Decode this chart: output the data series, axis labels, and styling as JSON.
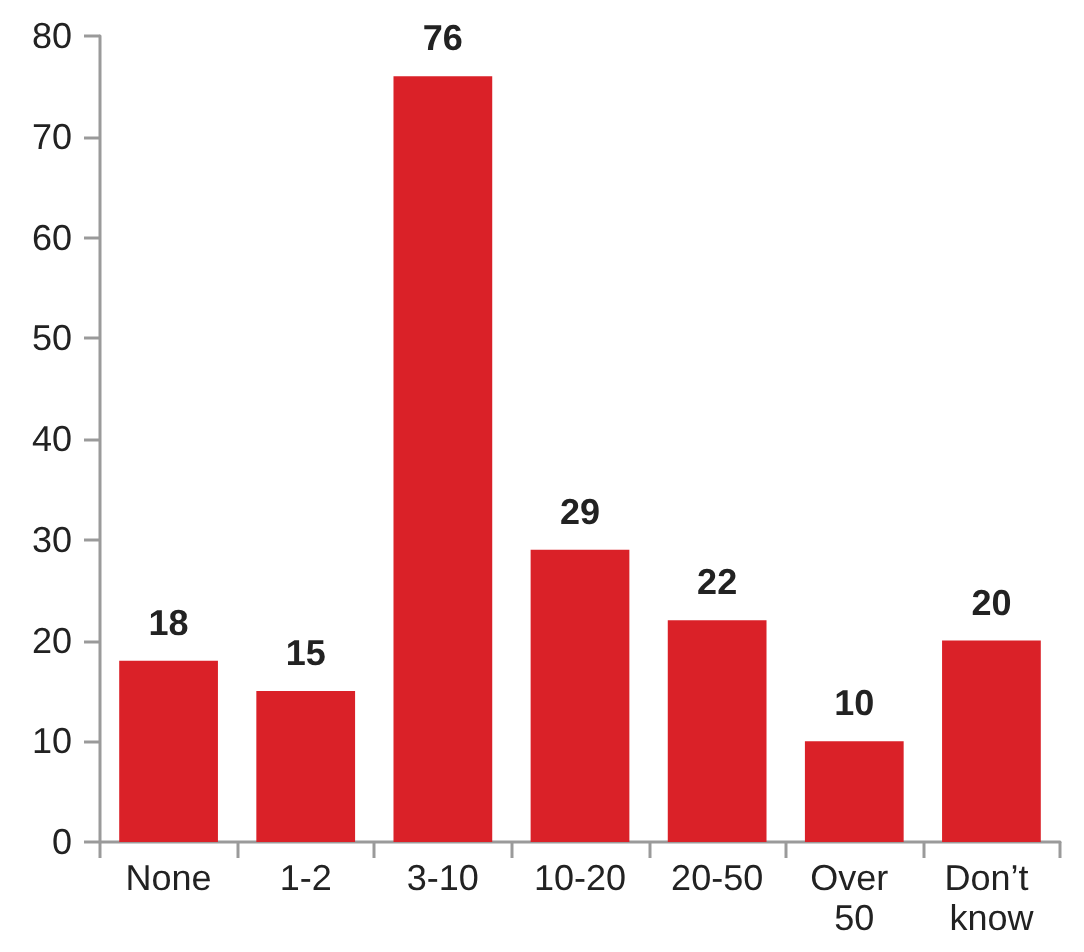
{
  "chart_data": {
    "type": "bar",
    "categories": [
      "None",
      "1-2",
      "3-10",
      "10-20",
      "20-50",
      "Over 50",
      "Don’t know"
    ],
    "values": [
      18,
      15,
      76,
      29,
      22,
      10,
      20
    ],
    "color": "#da2128",
    "ylim": [
      0,
      80
    ],
    "yticks": [
      0,
      10,
      20,
      30,
      40,
      50,
      60,
      70,
      80
    ],
    "grid": false,
    "data_labels": true
  }
}
